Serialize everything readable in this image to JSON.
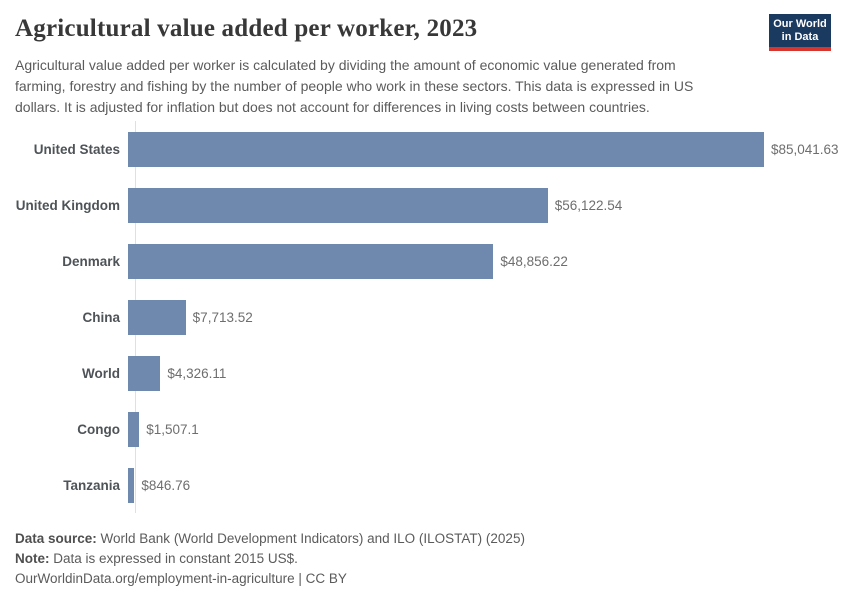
{
  "logo": {
    "line1": "Our World",
    "line2": "in Data",
    "bg_color": "#1b3a5f",
    "accent_color": "#d8352e"
  },
  "header": {
    "title": "Agricultural value added per worker, 2023",
    "subtitle_lines": [
      "Agricultural value added per worker is calculated by dividing the amount of economic value generated from",
      "farming, forestry and fishing by the number of people who work in these sectors. This data is expressed in US",
      "dollars. It is adjusted for inflation but does not account for differences in living costs between countries."
    ]
  },
  "chart_data": {
    "type": "bar",
    "orientation": "horizontal",
    "title": "Agricultural value added per worker, 2023",
    "xlabel": "",
    "ylabel": "",
    "categories": [
      "United States",
      "United Kingdom",
      "Denmark",
      "China",
      "World",
      "Congo",
      "Tanzania"
    ],
    "values": [
      85041.63,
      56122.54,
      48856.22,
      7713.52,
      4326.11,
      1507.1,
      846.76
    ],
    "value_labels": [
      "$85,041.63",
      "$56,122.54",
      "$48,856.22",
      "$7,713.52",
      "$4,326.11",
      "$1,507.1",
      "$846.76"
    ],
    "xlim": [
      0,
      85041.63
    ],
    "grid": false,
    "legend": false,
    "bar_color": "#6e88ae",
    "axis_color": "#e0e0e0"
  },
  "footer": {
    "data_source_label": "Data source:",
    "data_source_text": " World Bank (World Development Indicators) and ILO (ILOSTAT) (2025)",
    "note_label": "Note:",
    "note_text": " Data is expressed in constant 2015 US$.",
    "citation_link": "OurWorldinData.org/employment-in-agriculture",
    "citation_suffix": " | CC BY"
  }
}
